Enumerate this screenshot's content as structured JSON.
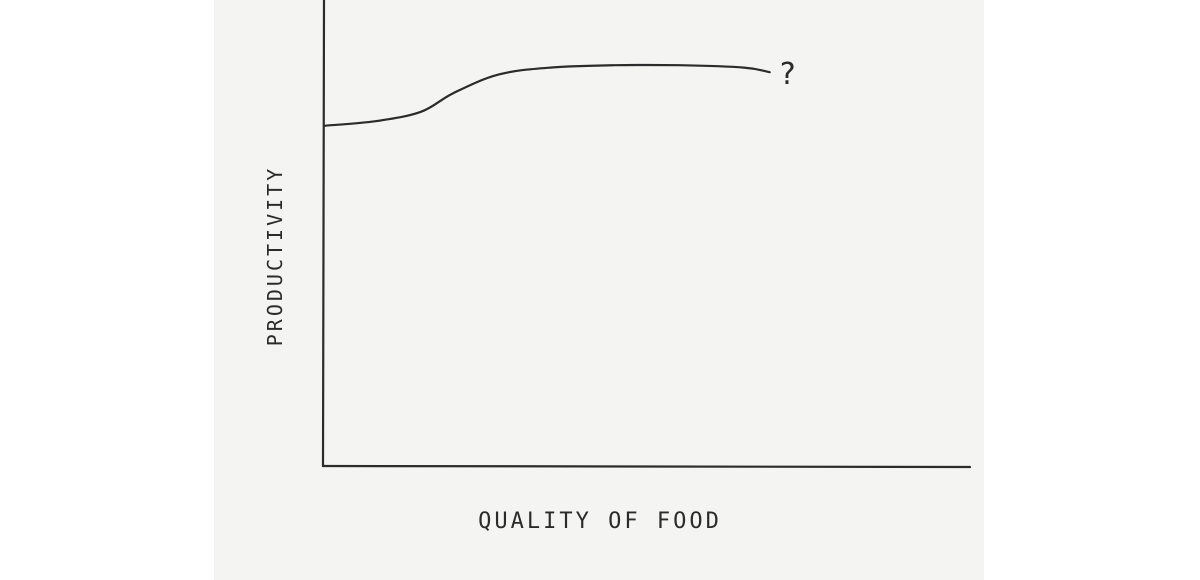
{
  "chart_data": {
    "type": "line",
    "title": "",
    "xlabel": "QUALITY OF FOOD",
    "ylabel": "PRODUCTIVITY",
    "xlim": [
      0,
      100
    ],
    "ylim": [
      0,
      100
    ],
    "grid": false,
    "legend": "none",
    "series": [
      {
        "x": [
          0,
          8,
          15,
          20,
          27,
          35,
          45,
          55,
          65,
          69
        ],
        "y": [
          73,
          74,
          76,
          80,
          84,
          85.5,
          86,
          86,
          85.5,
          84.5
        ],
        "end_annotation": "?"
      }
    ],
    "colors": {
      "ink": "#2b2b2b",
      "paper": "#f4f4f3",
      "background": "#ffffff"
    }
  }
}
